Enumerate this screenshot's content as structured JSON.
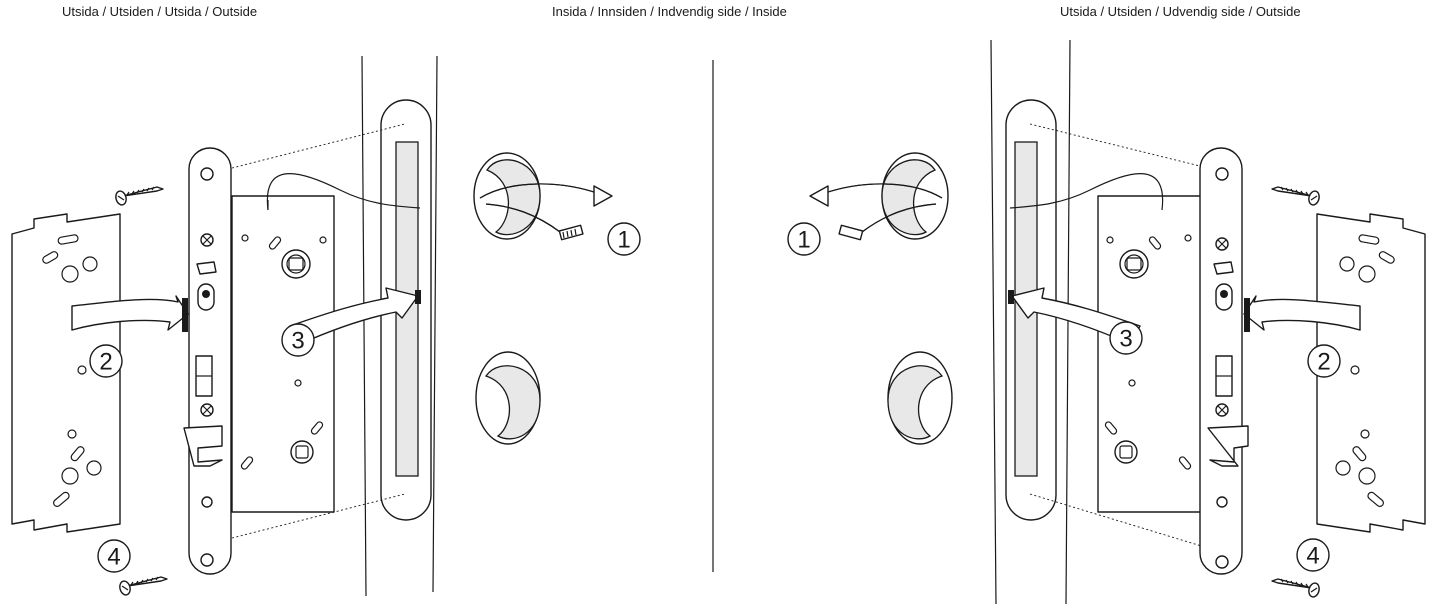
{
  "headers": {
    "outside_left": "Utsida / Utsiden / Utsida / Outside",
    "inside": "Insida / Innsiden / Indvendig side / Inside",
    "outside_right": "Utsida / Utsiden / Udvendig side / Outside"
  },
  "steps": {
    "left": {
      "one": "1",
      "two": "2",
      "three": "3",
      "four": "4"
    },
    "right": {
      "one": "1",
      "two": "2",
      "three": "3",
      "four": "4"
    }
  }
}
